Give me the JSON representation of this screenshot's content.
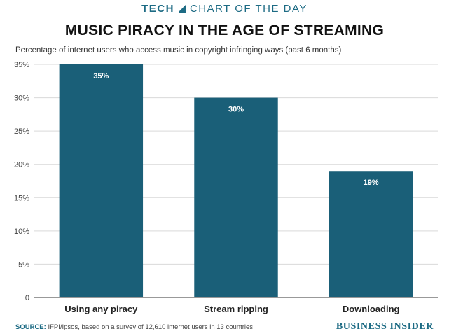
{
  "header": {
    "kicker": "TECH",
    "strap": "CHART OF THE DAY"
  },
  "footer": {
    "source_label": "SOURCE:",
    "source_text": "IFPI/Ipsos, based on a survey of 12,610 internet users in 13 countries",
    "brand": "BUSINESS INSIDER"
  },
  "colors": {
    "bar": "#1a5f78",
    "accent": "#1d6b84",
    "grid": "#d9d9d9",
    "bar_label": "#ffffff"
  },
  "chart_data": {
    "type": "bar",
    "title": "MUSIC PIRACY IN THE AGE OF STREAMING",
    "subtitle": "Percentage of internet users who access music in copyright infringing ways (past 6 months)",
    "categories": [
      "Using any piracy",
      "Stream ripping",
      "Downloading"
    ],
    "values": [
      35,
      30,
      19
    ],
    "value_labels": [
      "35%",
      "30%",
      "19%"
    ],
    "yticks": [
      0,
      5,
      10,
      15,
      20,
      25,
      30,
      35
    ],
    "ytick_labels": [
      "0",
      "5%",
      "10%",
      "15%",
      "20%",
      "25%",
      "30%",
      "35%"
    ],
    "ylim": [
      0,
      35
    ],
    "grid": true,
    "legend": "none"
  }
}
